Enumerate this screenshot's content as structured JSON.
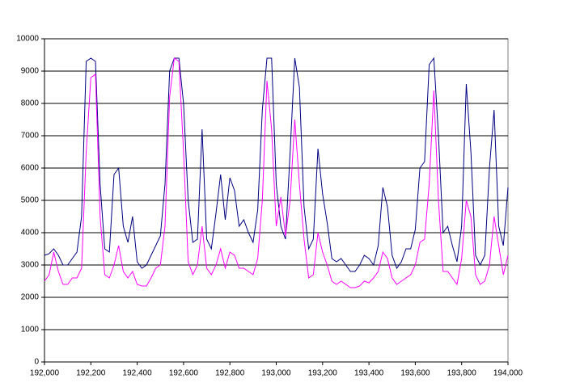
{
  "chart_data": {
    "type": "line",
    "x": [
      192000,
      192020,
      192040,
      192060,
      192080,
      192100,
      192120,
      192140,
      192160,
      192180,
      192200,
      192220,
      192240,
      192260,
      192280,
      192300,
      192320,
      192340,
      192360,
      192380,
      192400,
      192420,
      192440,
      192460,
      192480,
      192500,
      192520,
      192540,
      192560,
      192580,
      192600,
      192620,
      192640,
      192660,
      192680,
      192700,
      192720,
      192740,
      192760,
      192780,
      192800,
      192820,
      192840,
      192860,
      192880,
      192900,
      192920,
      192940,
      192960,
      192980,
      193000,
      193020,
      193040,
      193060,
      193080,
      193100,
      193120,
      193140,
      193160,
      193180,
      193200,
      193220,
      193240,
      193260,
      193280,
      193300,
      193320,
      193340,
      193360,
      193380,
      193400,
      193420,
      193440,
      193460,
      193480,
      193500,
      193520,
      193540,
      193560,
      193580,
      193600,
      193620,
      193640,
      193660,
      193680,
      193700,
      193720,
      193740,
      193760,
      193780,
      193800,
      193820,
      193840,
      193860,
      193880,
      193900,
      193920,
      193940,
      193960,
      193980,
      194000
    ],
    "series": [
      {
        "color": "#000080",
        "values": [
          3300,
          3350,
          3500,
          3300,
          3000,
          3000,
          3200,
          3400,
          4500,
          9300,
          9400,
          9300,
          5500,
          3500,
          3400,
          5800,
          6000,
          4200,
          3700,
          4500,
          3100,
          2900,
          3000,
          3300,
          3600,
          3900,
          5500,
          9000,
          9400,
          9400,
          8000,
          5000,
          3700,
          3800,
          7200,
          3800,
          3500,
          4600,
          5800,
          4400,
          5700,
          5300,
          4200,
          4400,
          4000,
          3700,
          4700,
          7800,
          9400,
          9400,
          5500,
          4200,
          3800,
          6500,
          9400,
          8500,
          4800,
          3500,
          3800,
          6600,
          5200,
          4300,
          3200,
          3100,
          3200,
          3000,
          2800,
          2800,
          3000,
          3300,
          3200,
          3000,
          3600,
          5400,
          4800,
          3300,
          2900,
          3100,
          3500,
          3500,
          4100,
          6000,
          6200,
          9200,
          9400,
          7000,
          4000,
          4200,
          3600,
          3100,
          4200,
          8600,
          6500,
          3300,
          3000,
          3300,
          6000,
          7800,
          4200,
          3600,
          5400
        ]
      },
      {
        "color": "#ff00ff",
        "values": [
          2500,
          2700,
          3400,
          2800,
          2400,
          2400,
          2600,
          2600,
          2900,
          6500,
          8800,
          8900,
          4500,
          2700,
          2600,
          3000,
          3600,
          2800,
          2600,
          2800,
          2400,
          2350,
          2350,
          2600,
          2900,
          3000,
          4200,
          8200,
          9400,
          9300,
          6500,
          3100,
          2700,
          3000,
          4200,
          2900,
          2700,
          3000,
          3500,
          2900,
          3400,
          3300,
          2900,
          2900,
          2800,
          2700,
          3200,
          5000,
          8700,
          7200,
          4200,
          5100,
          3900,
          5000,
          7500,
          5500,
          3800,
          2600,
          2700,
          4000,
          3400,
          3000,
          2500,
          2400,
          2500,
          2400,
          2300,
          2300,
          2350,
          2500,
          2450,
          2600,
          2800,
          3400,
          3200,
          2600,
          2400,
          2500,
          2600,
          2700,
          3000,
          3700,
          3800,
          5500,
          8400,
          5000,
          2800,
          2800,
          2600,
          2400,
          3200,
          5000,
          4500,
          2700,
          2400,
          2500,
          3000,
          4500,
          3600,
          2700,
          3300
        ]
      }
    ],
    "xlim": [
      192000,
      194000
    ],
    "xticks": [
      {
        "value": 192000,
        "label": "192,000"
      },
      {
        "value": 192200,
        "label": "192,200"
      },
      {
        "value": 192400,
        "label": "192,400"
      },
      {
        "value": 192600,
        "label": "192,600"
      },
      {
        "value": 192800,
        "label": "192,800"
      },
      {
        "value": 193000,
        "label": "193,000"
      },
      {
        "value": 193200,
        "label": "193,200"
      },
      {
        "value": 193400,
        "label": "193,400"
      },
      {
        "value": 193600,
        "label": "193,600"
      },
      {
        "value": 193800,
        "label": "193,800"
      },
      {
        "value": 194000,
        "label": "194,000"
      }
    ],
    "ylim": [
      0,
      10000
    ],
    "yticks": [
      0,
      1000,
      2000,
      3000,
      4000,
      5000,
      6000,
      7000,
      8000,
      9000,
      10000
    ],
    "grid": true
  }
}
